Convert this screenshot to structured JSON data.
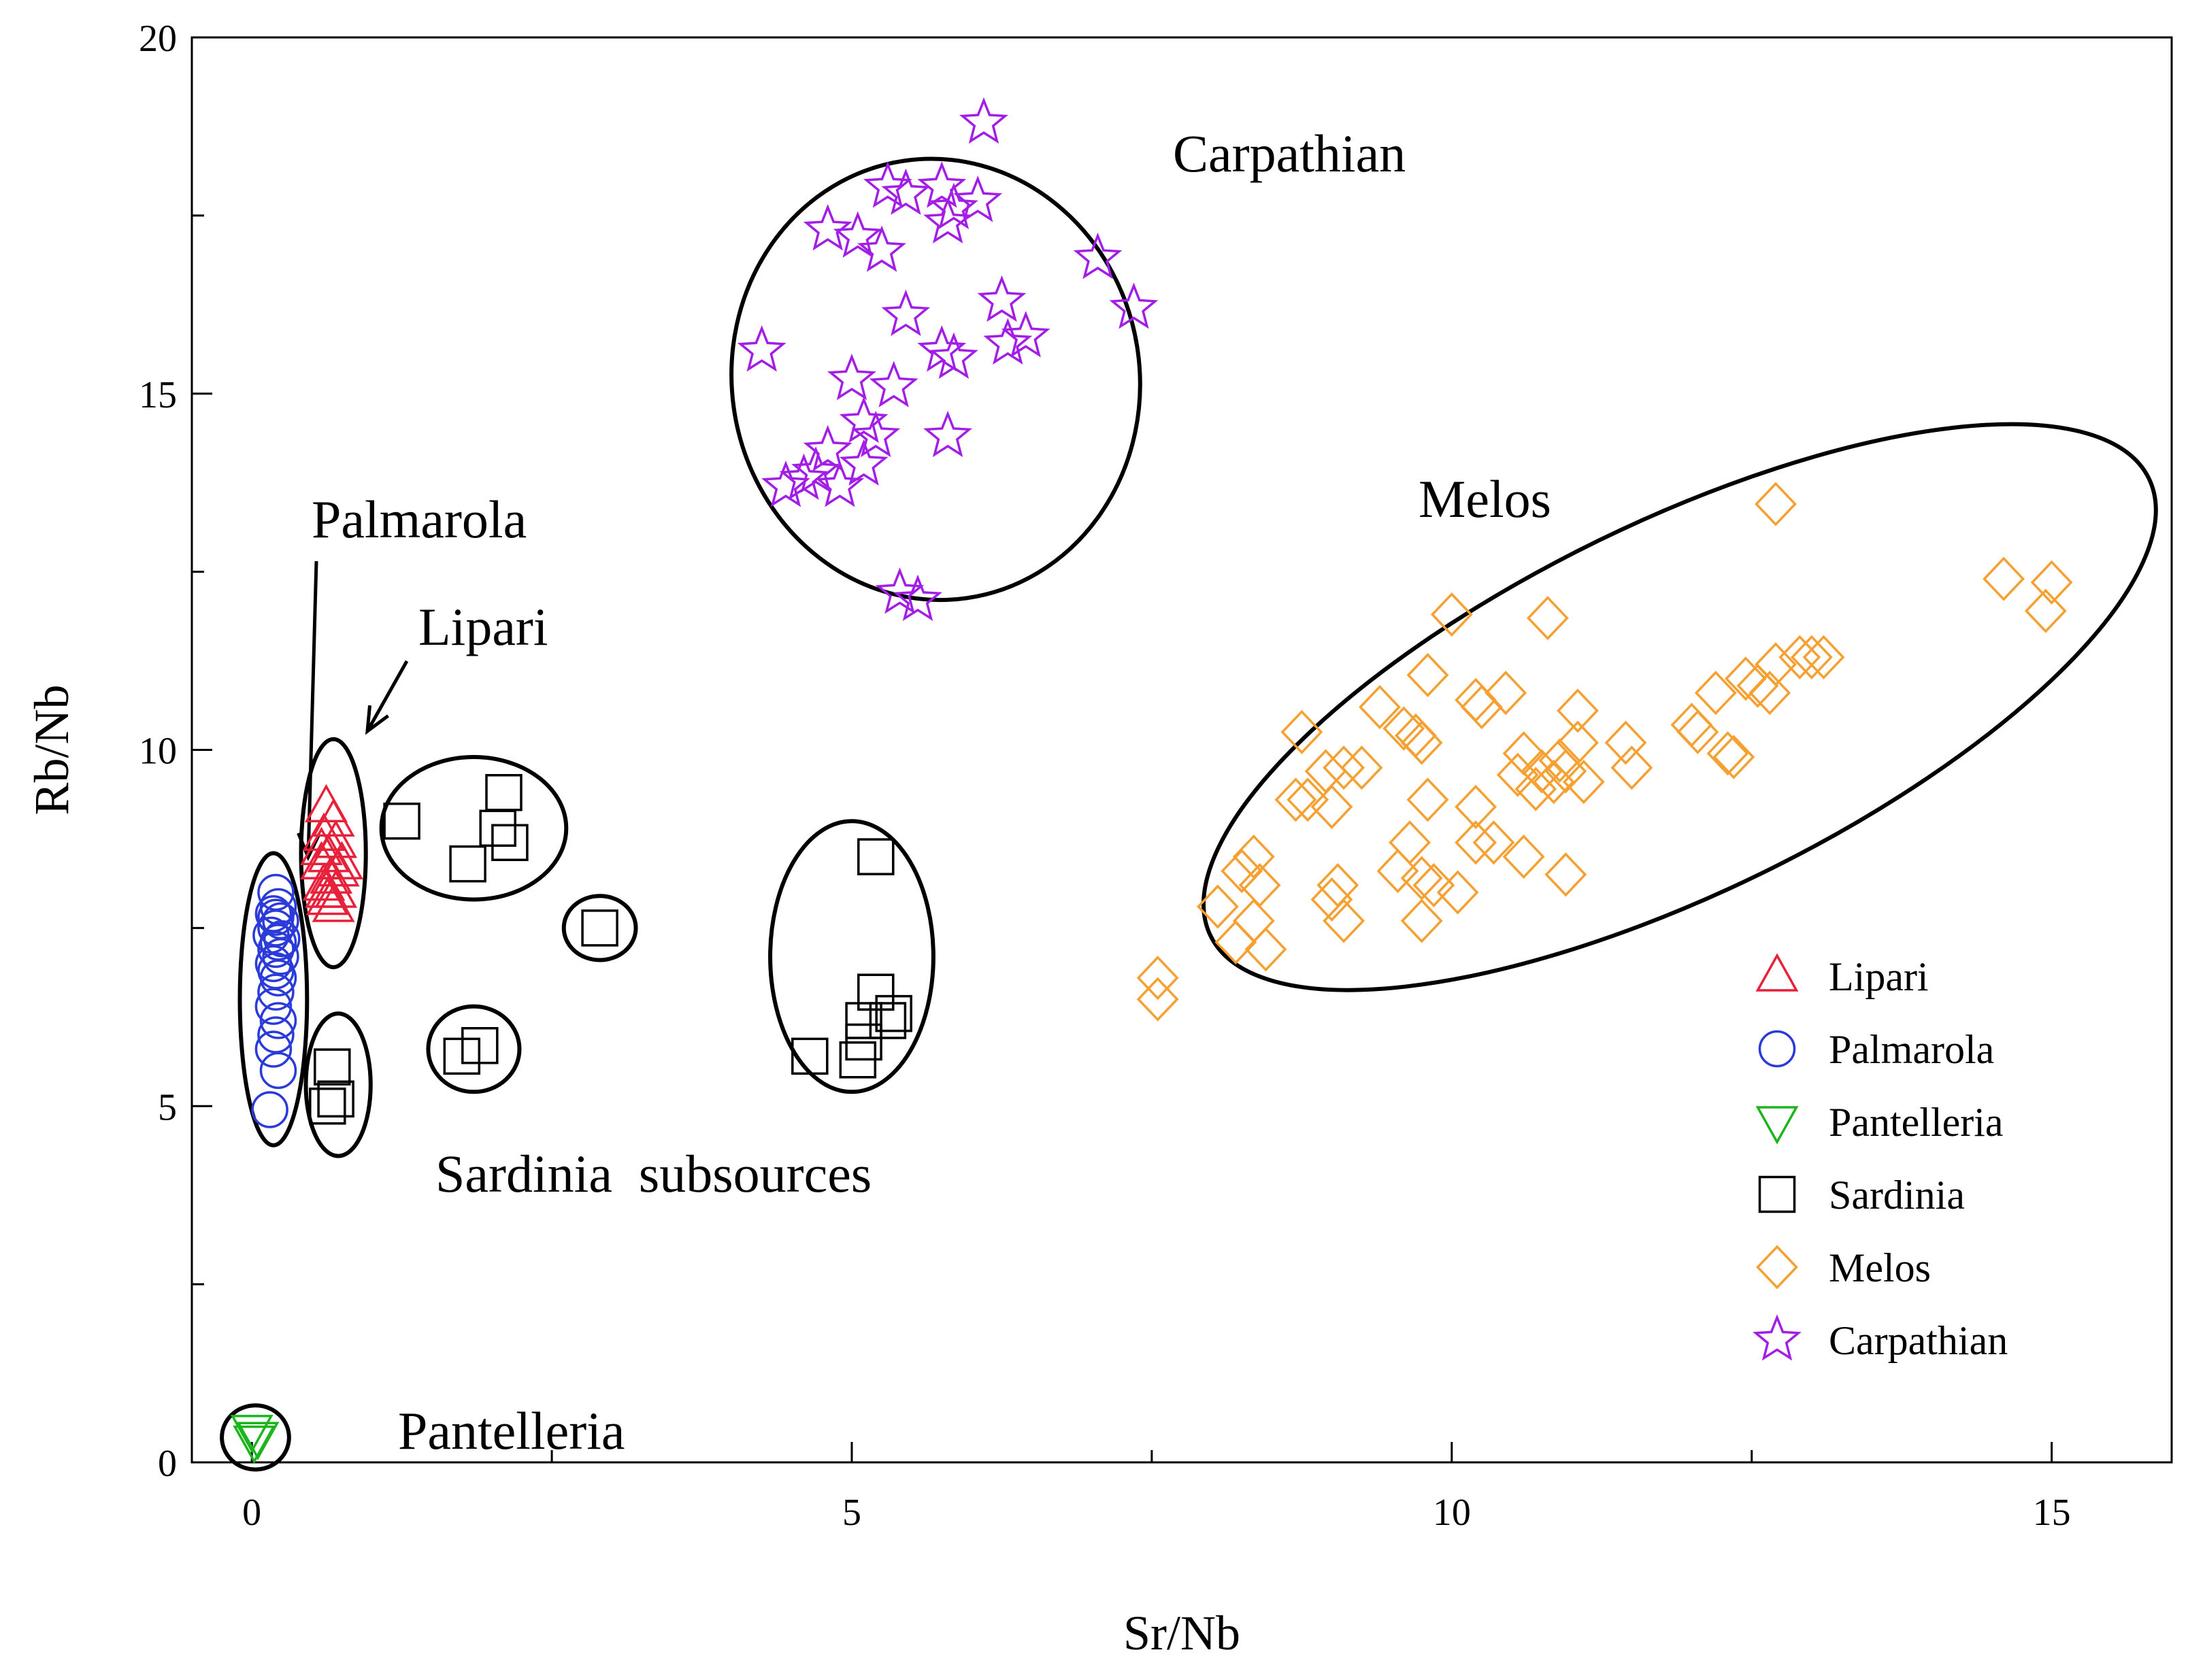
{
  "chart_data": {
    "type": "scatter",
    "title": "",
    "xlabel": "Sr/Nb",
    "ylabel": "Rb/Nb",
    "xlim": [
      -0.5,
      16
    ],
    "ylim": [
      0,
      20
    ],
    "xticks": [
      0,
      5,
      10,
      15
    ],
    "yticks": [
      0,
      5,
      10,
      15,
      20
    ],
    "grid": false,
    "legend_position": "right",
    "series": [
      {
        "name": "Lipari",
        "marker": "triangle-up",
        "color": "#e8213b",
        "points": [
          [
            0.62,
            9.2
          ],
          [
            0.68,
            9.0
          ],
          [
            0.6,
            8.8
          ],
          [
            0.7,
            8.7
          ],
          [
            0.64,
            8.5
          ],
          [
            0.58,
            8.4
          ],
          [
            0.72,
            8.3
          ],
          [
            0.66,
            8.2
          ],
          [
            0.6,
            8.1
          ],
          [
            0.7,
            8.0
          ],
          [
            0.63,
            7.9
          ],
          [
            0.68,
            7.8
          ],
          [
            0.58,
            8.6
          ],
          [
            0.75,
            8.4
          ],
          [
            0.62,
            8.0
          ]
        ]
      },
      {
        "name": "Palmarola",
        "marker": "circle",
        "color": "#2b3bd9",
        "points": [
          [
            0.2,
            8.0
          ],
          [
            0.22,
            7.8
          ],
          [
            0.18,
            7.7
          ],
          [
            0.24,
            7.6
          ],
          [
            0.2,
            7.5
          ],
          [
            0.16,
            7.4
          ],
          [
            0.22,
            7.3
          ],
          [
            0.2,
            7.2
          ],
          [
            0.24,
            7.1
          ],
          [
            0.18,
            7.0
          ],
          [
            0.2,
            6.9
          ],
          [
            0.22,
            6.8
          ],
          [
            0.2,
            6.6
          ],
          [
            0.18,
            6.4
          ],
          [
            0.22,
            6.2
          ],
          [
            0.2,
            6.0
          ],
          [
            0.18,
            5.8
          ],
          [
            0.22,
            5.5
          ],
          [
            0.15,
            4.95
          ],
          [
            0.2,
            7.65
          ],
          [
            0.25,
            7.35
          ]
        ]
      },
      {
        "name": "Pantelleria",
        "marker": "triangle-down",
        "color": "#1cb51c",
        "points": [
          [
            0.0,
            0.45
          ],
          [
            0.05,
            0.35
          ],
          [
            0.02,
            0.3
          ]
        ]
      },
      {
        "name": "Sardinia",
        "marker": "square",
        "color": "#000000",
        "points": [
          [
            1.25,
            9.0
          ],
          [
            1.8,
            8.4
          ],
          [
            2.1,
            9.4
          ],
          [
            2.05,
            8.9
          ],
          [
            2.15,
            8.7
          ],
          [
            2.9,
            7.5
          ],
          [
            1.75,
            5.7
          ],
          [
            1.9,
            5.85
          ],
          [
            0.67,
            5.55
          ],
          [
            0.7,
            5.1
          ],
          [
            0.63,
            5.0
          ],
          [
            5.2,
            8.5
          ],
          [
            5.2,
            6.6
          ],
          [
            5.35,
            6.3
          ],
          [
            5.1,
            6.2
          ],
          [
            5.3,
            6.2
          ],
          [
            4.65,
            5.7
          ],
          [
            5.05,
            5.65
          ],
          [
            5.1,
            5.9
          ]
        ]
      },
      {
        "name": "Melos",
        "marker": "diamond",
        "color": "#f5a031",
        "points": [
          [
            12.7,
            13.45
          ],
          [
            14.6,
            12.4
          ],
          [
            15.0,
            12.35
          ],
          [
            14.95,
            11.95
          ],
          [
            10.0,
            11.9
          ],
          [
            10.8,
            11.85
          ],
          [
            9.8,
            11.05
          ],
          [
            10.2,
            10.7
          ],
          [
            10.25,
            10.6
          ],
          [
            10.45,
            10.8
          ],
          [
            11.05,
            10.55
          ],
          [
            9.4,
            10.6
          ],
          [
            9.6,
            10.3
          ],
          [
            9.7,
            10.2
          ],
          [
            9.75,
            10.1
          ],
          [
            8.75,
            10.25
          ],
          [
            9.1,
            9.75
          ],
          [
            8.95,
            9.7
          ],
          [
            9.25,
            9.75
          ],
          [
            8.8,
            9.3
          ],
          [
            9.0,
            9.2
          ],
          [
            8.7,
            9.3
          ],
          [
            9.8,
            9.3
          ],
          [
            10.2,
            9.2
          ],
          [
            10.55,
            9.65
          ],
          [
            10.75,
            9.7
          ],
          [
            10.85,
            9.55
          ],
          [
            11.1,
            9.55
          ],
          [
            10.9,
            9.85
          ],
          [
            11.05,
            10.1
          ],
          [
            11.45,
            10.1
          ],
          [
            11.5,
            9.75
          ],
          [
            10.7,
            9.45
          ],
          [
            10.95,
            9.7
          ],
          [
            10.6,
            9.95
          ],
          [
            12.0,
            10.35
          ],
          [
            12.05,
            10.25
          ],
          [
            12.2,
            10.8
          ],
          [
            12.3,
            9.95
          ],
          [
            12.35,
            9.9
          ],
          [
            12.45,
            11.0
          ],
          [
            12.55,
            10.9
          ],
          [
            12.65,
            10.8
          ],
          [
            12.7,
            11.2
          ],
          [
            12.9,
            11.3
          ],
          [
            13.0,
            11.3
          ],
          [
            13.1,
            11.3
          ],
          [
            9.65,
            8.7
          ],
          [
            9.55,
            8.3
          ],
          [
            9.75,
            8.2
          ],
          [
            9.85,
            8.1
          ],
          [
            10.05,
            8.0
          ],
          [
            10.2,
            8.7
          ],
          [
            10.35,
            8.7
          ],
          [
            10.6,
            8.5
          ],
          [
            10.95,
            8.25
          ],
          [
            8.25,
            8.3
          ],
          [
            8.35,
            8.5
          ],
          [
            8.4,
            8.1
          ],
          [
            8.2,
            7.3
          ],
          [
            8.35,
            7.6
          ],
          [
            8.45,
            7.2
          ],
          [
            8.05,
            7.8
          ],
          [
            9.0,
            7.9
          ],
          [
            9.05,
            8.1
          ],
          [
            9.1,
            7.6
          ],
          [
            9.75,
            7.6
          ],
          [
            7.55,
            6.8
          ],
          [
            7.55,
            6.5
          ]
        ]
      },
      {
        "name": "Carpathian",
        "marker": "star",
        "color": "#a21ee6",
        "points": [
          [
            6.1,
            18.8
          ],
          [
            5.3,
            17.9
          ],
          [
            5.45,
            17.8
          ],
          [
            5.75,
            17.9
          ],
          [
            5.85,
            17.6
          ],
          [
            6.05,
            17.7
          ],
          [
            5.8,
            17.4
          ],
          [
            4.8,
            17.3
          ],
          [
            5.05,
            17.2
          ],
          [
            5.25,
            17.0
          ],
          [
            7.05,
            16.9
          ],
          [
            7.35,
            16.2
          ],
          [
            6.25,
            16.3
          ],
          [
            6.3,
            15.7
          ],
          [
            6.45,
            15.8
          ],
          [
            5.45,
            16.1
          ],
          [
            5.75,
            15.6
          ],
          [
            5.85,
            15.5
          ],
          [
            4.25,
            15.6
          ],
          [
            5.0,
            15.2
          ],
          [
            5.35,
            15.1
          ],
          [
            5.1,
            14.6
          ],
          [
            5.2,
            14.4
          ],
          [
            5.8,
            14.4
          ],
          [
            4.8,
            14.2
          ],
          [
            5.1,
            14.0
          ],
          [
            4.7,
            13.9
          ],
          [
            4.45,
            13.7
          ],
          [
            4.6,
            13.8
          ],
          [
            4.9,
            13.7
          ],
          [
            5.4,
            12.2
          ],
          [
            5.55,
            12.1
          ]
        ]
      }
    ],
    "annotations": [
      {
        "text": "Carpathian"
      },
      {
        "text": "Melos"
      },
      {
        "text": "Palmarola"
      },
      {
        "text": "Lipari"
      },
      {
        "text": "Sardinia  subsources"
      },
      {
        "text": "Pantelleria"
      }
    ],
    "group_ellipses": [
      {
        "group": "Carpathian",
        "cx": 5.7,
        "cy": 15.2,
        "rx": 1.7,
        "ry": 3.1,
        "angle": -8
      },
      {
        "group": "Melos",
        "cx": 11.9,
        "cy": 10.6,
        "rx": 4.35,
        "ry": 2.6,
        "angle": -26
      },
      {
        "group": "Palmarola",
        "cx": 0.18,
        "cy": 6.5,
        "rx": 0.28,
        "ry": 2.05,
        "angle": 0
      },
      {
        "group": "Lipari",
        "cx": 0.68,
        "cy": 8.55,
        "rx": 0.27,
        "ry": 1.6,
        "angle": 0
      },
      {
        "group": "Sardinia",
        "cx": 1.85,
        "cy": 8.9,
        "rx": 0.77,
        "ry": 1.0,
        "angle": 0
      },
      {
        "group": "Sardinia",
        "cx": 2.9,
        "cy": 7.5,
        "rx": 0.3,
        "ry": 0.45,
        "angle": 0
      },
      {
        "group": "Sardinia",
        "cx": 1.85,
        "cy": 5.8,
        "rx": 0.38,
        "ry": 0.6,
        "angle": 0
      },
      {
        "group": "Sardinia",
        "cx": 0.72,
        "cy": 5.3,
        "rx": 0.27,
        "ry": 1.0,
        "angle": 0
      },
      {
        "group": "Sardinia",
        "cx": 5.0,
        "cy": 7.1,
        "rx": 0.68,
        "ry": 1.9,
        "angle": 0
      },
      {
        "group": "Pantelleria",
        "cx": 0.03,
        "cy": 0.35,
        "rx": 0.28,
        "ry": 0.45,
        "angle": 0
      }
    ]
  }
}
